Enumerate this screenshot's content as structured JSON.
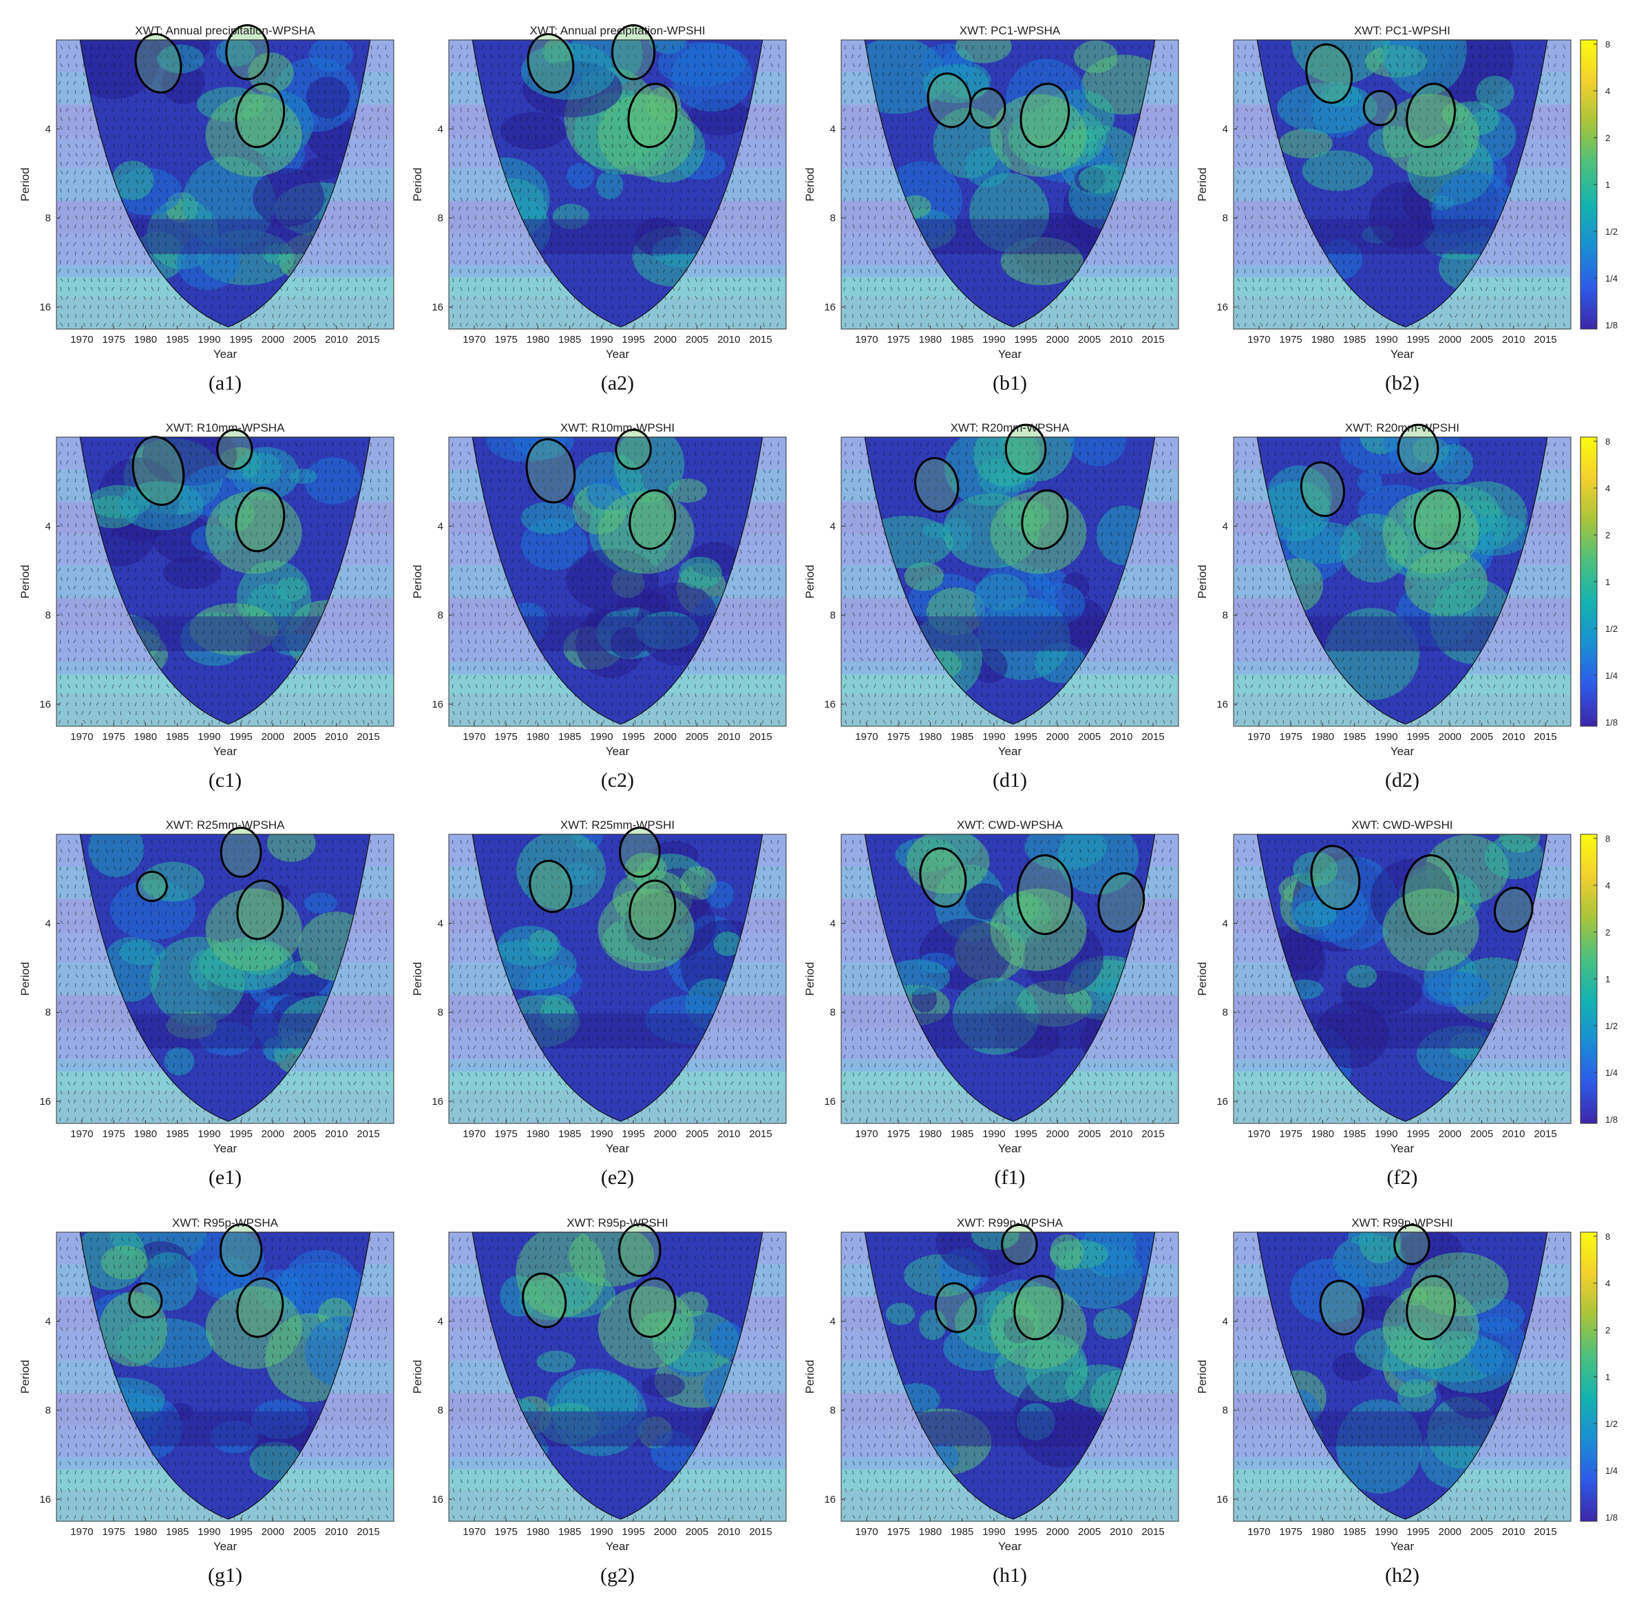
{
  "chart_data": {
    "type": "heatmap",
    "description_kind": "cross wavelet transform panels",
    "xlabel": "Year",
    "ylabel": "Period",
    "x_ticks": [
      1970,
      1975,
      1980,
      1985,
      1990,
      1995,
      2000,
      2005,
      2010,
      2015
    ],
    "xlim": [
      1966,
      2019
    ],
    "y_ticks": [
      4,
      8,
      16
    ],
    "ylim": [
      2,
      19
    ],
    "y_scale": "log2",
    "colorbar": {
      "ticks": [
        "8",
        "4",
        "2",
        "1",
        "1/2",
        "1/4",
        "1/8"
      ],
      "colormap": [
        "#3e26a8",
        "#2e5be8",
        "#1a8fd4",
        "#14b3b0",
        "#4cc07e",
        "#a8c43a",
        "#f3d02e",
        "#f9fb0e"
      ]
    },
    "panels": [
      {
        "title": "XWT: Annual precipitation-WPSHA",
        "caption": "(a1)",
        "contours": [
          [
            1982,
            2.4,
            1.6
          ],
          [
            1996,
            2.2,
            1.4
          ],
          [
            1998,
            3.6,
            1.8
          ]
        ]
      },
      {
        "title": "XWT: Annual precipitation-WPSHI",
        "caption": "(a2)",
        "contours": [
          [
            1982,
            2.4,
            1.6
          ],
          [
            1995,
            2.2,
            1.4
          ],
          [
            1998,
            3.6,
            1.8
          ]
        ]
      },
      {
        "title": "XWT: PC1-WPSHA",
        "caption": "(b1)",
        "contours": [
          [
            1983,
            3.2,
            1.4
          ],
          [
            1989,
            3.4,
            0.8
          ],
          [
            1998,
            3.6,
            1.8
          ]
        ]
      },
      {
        "title": "XWT: PC1-WPSHI",
        "caption": "(b2)",
        "contours": [
          [
            1981,
            2.6,
            1.6
          ],
          [
            1989,
            3.4,
            0.6
          ],
          [
            1997,
            3.6,
            1.8
          ]
        ]
      },
      {
        "title": "XWT: R10mm-WPSHA",
        "caption": "(c1)",
        "contours": [
          [
            1982,
            2.6,
            2.0
          ],
          [
            1994,
            2.2,
            0.8
          ],
          [
            1998,
            3.8,
            1.8
          ]
        ]
      },
      {
        "title": "XWT: R10mm-WPSHI",
        "caption": "(c2)",
        "contours": [
          [
            1982,
            2.6,
            1.8
          ],
          [
            1995,
            2.2,
            0.8
          ],
          [
            1998,
            3.8,
            1.6
          ]
        ]
      },
      {
        "title": "XWT: R20mm-WPSHA",
        "caption": "(d1)",
        "contours": [
          [
            1981,
            2.9,
            1.4
          ],
          [
            1995,
            2.2,
            1.2
          ],
          [
            1998,
            3.8,
            1.6
          ]
        ]
      },
      {
        "title": "XWT: R20mm-WPSHI",
        "caption": "(d2)",
        "contours": [
          [
            1980,
            3.0,
            1.4
          ],
          [
            1995,
            2.2,
            1.2
          ],
          [
            1998,
            3.8,
            1.6
          ]
        ]
      },
      {
        "title": "XWT: R25mm-WPSHA",
        "caption": "(e1)",
        "contours": [
          [
            1981,
            3.0,
            0.4
          ],
          [
            1995,
            2.3,
            1.2
          ],
          [
            1998,
            3.6,
            1.6
          ]
        ]
      },
      {
        "title": "XWT: R25mm-WPSHI",
        "caption": "(e2)",
        "contours": [
          [
            1982,
            3.0,
            1.3
          ],
          [
            1996,
            2.3,
            1.2
          ],
          [
            1998,
            3.6,
            1.6
          ]
        ]
      },
      {
        "title": "XWT: CWD-WPSHA",
        "caption": "(f1)",
        "contours": [
          [
            1982,
            2.8,
            1.6
          ],
          [
            1998,
            3.2,
            2.4
          ],
          [
            2010,
            3.4,
            1.6
          ]
        ]
      },
      {
        "title": "XWT: CWD-WPSHI",
        "caption": "(f2)",
        "contours": [
          [
            1982,
            2.8,
            1.8
          ],
          [
            1997,
            3.2,
            2.4
          ],
          [
            2010,
            3.6,
            1.0
          ]
        ]
      },
      {
        "title": "XWT: R95p-WPSHA",
        "caption": "(g1)",
        "contours": [
          [
            1980,
            3.4,
            0.6
          ],
          [
            1995,
            2.3,
            1.3
          ],
          [
            1998,
            3.6,
            1.6
          ]
        ]
      },
      {
        "title": "XWT: R95p-WPSHI",
        "caption": "(g2)",
        "contours": [
          [
            1981,
            3.4,
            1.4
          ],
          [
            1996,
            2.3,
            1.3
          ],
          [
            1998,
            3.6,
            1.6
          ]
        ]
      },
      {
        "title": "XWT: R99p-WPSHA",
        "caption": "(h1)",
        "contours": [
          [
            1984,
            3.6,
            1.2
          ],
          [
            1994,
            2.2,
            0.8
          ],
          [
            1997,
            3.6,
            1.8
          ]
        ]
      },
      {
        "title": "XWT: R99p-WPSHI",
        "caption": "(h2)",
        "contours": [
          [
            1983,
            3.6,
            1.4
          ],
          [
            1994,
            2.2,
            0.8
          ],
          [
            1997,
            3.6,
            1.8
          ]
        ]
      }
    ]
  }
}
